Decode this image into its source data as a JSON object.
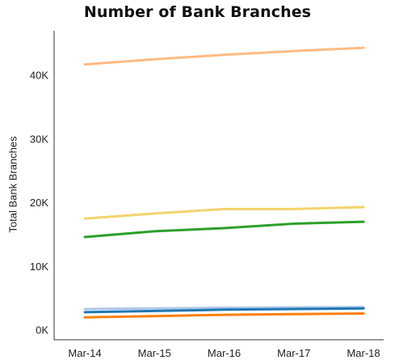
{
  "chart_data": {
    "type": "line",
    "title": "Number of Bank Branches",
    "xlabel": "",
    "ylabel": "Total Bank Branches",
    "categories": [
      "Mar-14",
      "Mar-15",
      "Mar-16",
      "Mar-17",
      "Mar-18"
    ],
    "ylim": [
      0,
      47000
    ],
    "yticks": [
      0,
      10000,
      20000,
      30000,
      40000
    ],
    "ytick_labels": [
      "0K",
      "10K",
      "20K",
      "30K",
      "40K"
    ],
    "grid": false,
    "legend": "none",
    "series": [
      {
        "color": "#fdbb84",
        "values": [
          41700,
          42500,
          43200,
          43800,
          44300
        ]
      },
      {
        "color": "#f3d36c",
        "values": [
          17500,
          18300,
          19000,
          19000,
          19300
        ]
      },
      {
        "color": "#2ca02c",
        "values": [
          14600,
          15500,
          16000,
          16700,
          17000
        ]
      },
      {
        "color": "#aec7e8",
        "values": [
          3300,
          3400,
          3500,
          3550,
          3600
        ]
      },
      {
        "color": "#1f77b4",
        "values": [
          2800,
          3000,
          3200,
          3300,
          3400
        ]
      },
      {
        "color": "#ff7f0e",
        "values": [
          2000,
          2200,
          2400,
          2500,
          2600
        ]
      }
    ]
  }
}
